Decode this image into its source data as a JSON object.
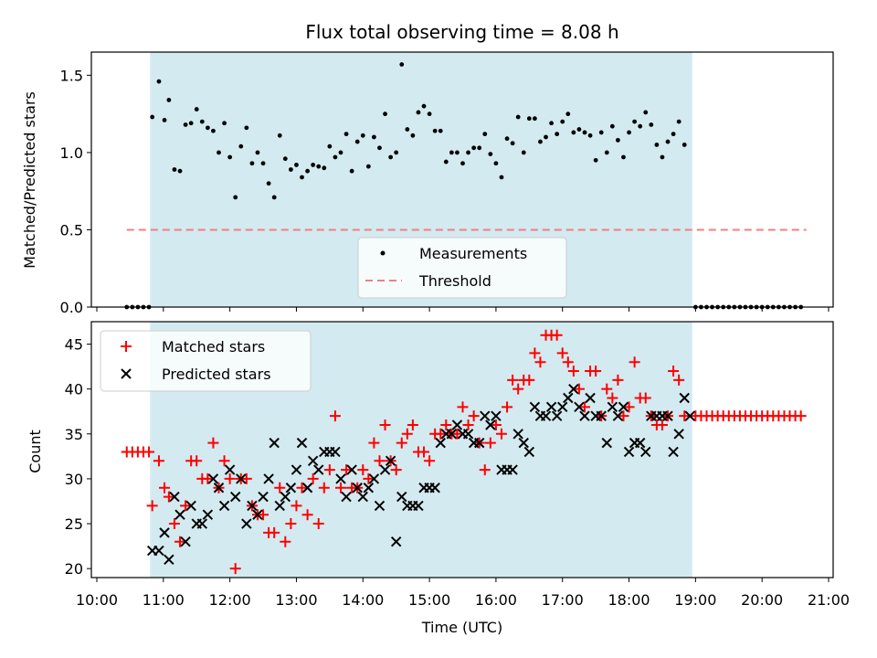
{
  "chart_data": [
    {
      "type": "scatter",
      "title": "Flux total observing time = 8.08 h",
      "xlabel": "",
      "ylabel": "Matched/Predicted stars",
      "xlim": [
        "10:00",
        "21:00"
      ],
      "ylim": [
        0,
        1.65
      ],
      "yticks": [
        "0.0",
        "0.5",
        "1.0",
        "1.5"
      ],
      "shaded_span": [
        "10:48",
        "18:57"
      ],
      "colors": {
        "shade": "#d3eaf0",
        "measure": "#000000",
        "threshold": "#f08080"
      },
      "legend": {
        "position": "lower-center",
        "entries": [
          "Measurements",
          "Threshold"
        ]
      },
      "series": [
        {
          "name": "Measurements",
          "x": [
            "10:27",
            "10:32",
            "10:37",
            "10:42",
            "10:47",
            "10:50",
            "10:56",
            "11:01",
            "11:05",
            "11:10",
            "11:15",
            "11:20",
            "11:25",
            "11:30",
            "11:35",
            "11:40",
            "11:45",
            "11:50",
            "11:55",
            "12:00",
            "12:05",
            "12:10",
            "12:15",
            "12:20",
            "12:25",
            "12:30",
            "12:35",
            "12:40",
            "12:45",
            "12:50",
            "12:55",
            "13:00",
            "13:05",
            "13:10",
            "13:15",
            "13:20",
            "13:25",
            "13:30",
            "13:35",
            "13:40",
            "13:45",
            "13:50",
            "13:55",
            "14:00",
            "14:05",
            "14:10",
            "14:15",
            "14:20",
            "14:25",
            "14:30",
            "14:35",
            "14:40",
            "14:45",
            "14:50",
            "14:55",
            "15:00",
            "15:05",
            "15:10",
            "15:15",
            "15:20",
            "15:25",
            "15:30",
            "15:35",
            "15:40",
            "15:45",
            "15:50",
            "15:55",
            "16:00",
            "16:05",
            "16:10",
            "16:15",
            "16:20",
            "16:25",
            "16:30",
            "16:35",
            "16:40",
            "16:45",
            "16:50",
            "16:55",
            "17:00",
            "17:05",
            "17:10",
            "17:15",
            "17:20",
            "17:25",
            "17:30",
            "17:35",
            "17:40",
            "17:45",
            "17:50",
            "17:55",
            "18:00",
            "18:05",
            "18:10",
            "18:15",
            "18:20",
            "18:25",
            "18:30",
            "18:35",
            "18:40",
            "18:45",
            "18:50",
            "19:00",
            "19:05",
            "19:10",
            "19:15",
            "19:20",
            "19:25",
            "19:30",
            "19:35",
            "19:40",
            "19:45",
            "19:50",
            "19:55",
            "20:00",
            "20:05",
            "20:10",
            "20:15",
            "20:20",
            "20:25",
            "20:30",
            "20:35"
          ],
          "y": [
            0,
            0,
            0,
            0,
            0,
            1.23,
            1.46,
            1.21,
            1.34,
            0.89,
            0.88,
            1.18,
            1.19,
            1.28,
            1.2,
            1.16,
            1.14,
            1.0,
            1.19,
            0.97,
            0.71,
            1.04,
            1.16,
            0.93,
            1.0,
            0.93,
            0.8,
            0.71,
            1.11,
            0.96,
            0.89,
            0.92,
            0.84,
            0.88,
            0.92,
            0.91,
            0.9,
            1.04,
            0.97,
            1.0,
            1.12,
            0.88,
            1.07,
            1.11,
            0.91,
            1.1,
            1.03,
            1.25,
            0.97,
            1.0,
            1.57,
            1.15,
            1.11,
            1.26,
            1.3,
            1.25,
            1.14,
            1.14,
            0.94,
            1.0,
            1.0,
            0.93,
            1.0,
            1.03,
            1.03,
            1.12,
            0.99,
            0.93,
            0.84,
            1.09,
            1.06,
            1.23,
            1.0,
            1.22,
            1.22,
            1.07,
            1.1,
            1.19,
            1.12,
            1.2,
            1.25,
            1.13,
            1.15,
            1.13,
            1.11,
            0.95,
            1.13,
            1.0,
            1.17,
            1.08,
            0.97,
            1.13,
            1.2,
            1.17,
            1.26,
            1.18,
            1.05,
            0.97,
            1.07,
            1.12,
            1.2,
            1.05,
            0,
            0,
            0,
            0,
            0,
            0,
            0,
            0,
            0,
            0,
            0,
            0,
            0,
            0,
            0,
            0,
            0,
            0,
            0,
            0
          ]
        },
        {
          "name": "Threshold",
          "x": [
            "10:27",
            "20:40"
          ],
          "y": [
            0.5,
            0.5
          ]
        }
      ]
    },
    {
      "type": "scatter",
      "title": "",
      "xlabel": "Time (UTC)",
      "ylabel": "Count",
      "xlim": [
        "10:00",
        "21:00"
      ],
      "ylim": [
        19,
        47.5
      ],
      "xticks": [
        "10:00",
        "11:00",
        "12:00",
        "13:00",
        "14:00",
        "15:00",
        "16:00",
        "17:00",
        "18:00",
        "19:00",
        "20:00",
        "21:00"
      ],
      "yticks": [
        "20",
        "25",
        "30",
        "35",
        "40",
        "45"
      ],
      "shaded_span": [
        "10:48",
        "18:57"
      ],
      "colors": {
        "shade": "#d3eaf0",
        "matched": "#ff0000",
        "predicted": "#000000"
      },
      "legend": {
        "position": "upper-left",
        "entries": [
          "Matched stars",
          "Predicted stars"
        ]
      },
      "series": [
        {
          "name": "Matched stars",
          "x": [
            "10:27",
            "10:32",
            "10:37",
            "10:42",
            "10:47",
            "10:50",
            "10:56",
            "11:01",
            "11:05",
            "11:10",
            "11:15",
            "11:20",
            "11:25",
            "11:30",
            "11:35",
            "11:40",
            "11:45",
            "11:50",
            "11:55",
            "12:00",
            "12:05",
            "12:10",
            "12:15",
            "12:20",
            "12:25",
            "12:30",
            "12:35",
            "12:40",
            "12:45",
            "12:50",
            "12:55",
            "13:00",
            "13:05",
            "13:10",
            "13:15",
            "13:20",
            "13:25",
            "13:30",
            "13:35",
            "13:40",
            "13:45",
            "13:50",
            "13:55",
            "14:00",
            "14:05",
            "14:10",
            "14:15",
            "14:20",
            "14:25",
            "14:30",
            "14:35",
            "14:40",
            "14:45",
            "14:50",
            "14:55",
            "15:00",
            "15:05",
            "15:10",
            "15:15",
            "15:20",
            "15:25",
            "15:30",
            "15:35",
            "15:40",
            "15:45",
            "15:50",
            "15:55",
            "16:00",
            "16:05",
            "16:10",
            "16:15",
            "16:20",
            "16:25",
            "16:30",
            "16:35",
            "16:40",
            "16:45",
            "16:50",
            "16:55",
            "17:00",
            "17:05",
            "17:10",
            "17:15",
            "17:20",
            "17:25",
            "17:30",
            "17:35",
            "17:40",
            "17:45",
            "17:50",
            "17:55",
            "18:00",
            "18:05",
            "18:10",
            "18:15",
            "18:20",
            "18:25",
            "18:30",
            "18:35",
            "18:40",
            "18:45",
            "18:50",
            "19:00",
            "19:05",
            "19:10",
            "19:15",
            "19:20",
            "19:25",
            "19:30",
            "19:35",
            "19:40",
            "19:45",
            "19:50",
            "19:55",
            "20:00",
            "20:05",
            "20:10",
            "20:15",
            "20:20",
            "20:25",
            "20:30",
            "20:35"
          ],
          "y": [
            33,
            33,
            33,
            33,
            33,
            27,
            32,
            29,
            28,
            25,
            23,
            27,
            32,
            32,
            30,
            30,
            34,
            29,
            32,
            30,
            20,
            30,
            30,
            27,
            26,
            26,
            24,
            24,
            29,
            23,
            25,
            27,
            29,
            26,
            30,
            25,
            29,
            31,
            37,
            29,
            31,
            29,
            29,
            31,
            30,
            34,
            32,
            36,
            32,
            31,
            34,
            35,
            36,
            33,
            33,
            32,
            35,
            35,
            36,
            35,
            35,
            38,
            36,
            37,
            34,
            31,
            34,
            36,
            35,
            38,
            41,
            40,
            41,
            41,
            44,
            43,
            46,
            46,
            46,
            44,
            43,
            42,
            40,
            38,
            42,
            42,
            37,
            40,
            39,
            41,
            37,
            38,
            43,
            39,
            39,
            37,
            36,
            36,
            37,
            42,
            41,
            37,
            37,
            37,
            37,
            37,
            37,
            37,
            37,
            37,
            37,
            37,
            37,
            37,
            37,
            37,
            37,
            37,
            37,
            37,
            37,
            37
          ]
        },
        {
          "name": "Predicted stars",
          "x": [
            "10:50",
            "10:56",
            "11:01",
            "11:05",
            "11:10",
            "11:15",
            "11:20",
            "11:25",
            "11:30",
            "11:35",
            "11:40",
            "11:45",
            "11:50",
            "11:55",
            "12:00",
            "12:05",
            "12:10",
            "12:15",
            "12:20",
            "12:25",
            "12:30",
            "12:35",
            "12:40",
            "12:45",
            "12:50",
            "12:55",
            "13:00",
            "13:05",
            "13:10",
            "13:15",
            "13:20",
            "13:25",
            "13:30",
            "13:35",
            "13:40",
            "13:45",
            "13:50",
            "13:55",
            "14:00",
            "14:05",
            "14:10",
            "14:15",
            "14:20",
            "14:25",
            "14:30",
            "14:35",
            "14:40",
            "14:45",
            "14:50",
            "14:55",
            "15:00",
            "15:05",
            "15:10",
            "15:15",
            "15:20",
            "15:25",
            "15:30",
            "15:35",
            "15:40",
            "15:45",
            "15:50",
            "15:55",
            "16:00",
            "16:05",
            "16:10",
            "16:15",
            "16:20",
            "16:25",
            "16:30",
            "16:35",
            "16:40",
            "16:45",
            "16:50",
            "16:55",
            "17:00",
            "17:05",
            "17:10",
            "17:15",
            "17:20",
            "17:25",
            "17:30",
            "17:35",
            "17:40",
            "17:45",
            "17:50",
            "17:55",
            "18:00",
            "18:05",
            "18:10",
            "18:15",
            "18:20",
            "18:25",
            "18:30",
            "18:35",
            "18:40",
            "18:45",
            "18:50",
            "18:55"
          ],
          "y": [
            22,
            22,
            24,
            21,
            28,
            26,
            23,
            27,
            25,
            25,
            26,
            30,
            29,
            27,
            31,
            28,
            30,
            25,
            27,
            26,
            28,
            30,
            34,
            27,
            28,
            29,
            31,
            34,
            29,
            32,
            31,
            33,
            33,
            33,
            30,
            28,
            31,
            29,
            28,
            29,
            30,
            27,
            31,
            32,
            23,
            28,
            27,
            27,
            27,
            29,
            29,
            29,
            34,
            35,
            35,
            36,
            35,
            35,
            34,
            34,
            37,
            36,
            37,
            31,
            31,
            31,
            35,
            34,
            33,
            38,
            37,
            37,
            38,
            37,
            38,
            39,
            40,
            38,
            37,
            39,
            37,
            37,
            34,
            38,
            37,
            38,
            33,
            34,
            34,
            33,
            37,
            37,
            37,
            37,
            33,
            35,
            39,
            37
          ]
        }
      ]
    }
  ]
}
